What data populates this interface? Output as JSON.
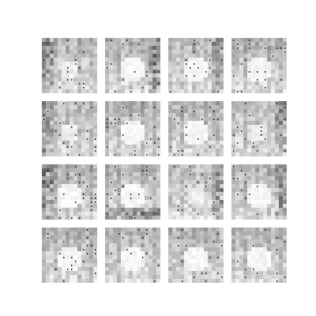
{
  "grid": {
    "rows": 4,
    "cols": 4,
    "tiles": [
      {
        "row": 0,
        "col": 0,
        "motif": "noise",
        "contrast": 0.55,
        "stripes": "left"
      },
      {
        "row": 0,
        "col": 1,
        "motif": "blob",
        "contrast": 0.6,
        "stripes": "right"
      },
      {
        "row": 0,
        "col": 2,
        "motif": "blob",
        "contrast": 0.55,
        "stripes": "right"
      },
      {
        "row": 0,
        "col": 3,
        "motif": "blob",
        "contrast": 0.65,
        "stripes": "none"
      },
      {
        "row": 1,
        "col": 0,
        "motif": "noise",
        "contrast": 0.5,
        "stripes": "left"
      },
      {
        "row": 1,
        "col": 1,
        "motif": "blob",
        "contrast": 0.7,
        "stripes": "none"
      },
      {
        "row": 1,
        "col": 2,
        "motif": "blob",
        "contrast": 0.65,
        "stripes": "none"
      },
      {
        "row": 1,
        "col": 3,
        "motif": "noise",
        "contrast": 0.5,
        "stripes": "right"
      },
      {
        "row": 2,
        "col": 0,
        "motif": "blob",
        "contrast": 0.7,
        "stripes": "left"
      },
      {
        "row": 2,
        "col": 1,
        "motif": "blob",
        "contrast": 0.6,
        "stripes": "bottom"
      },
      {
        "row": 2,
        "col": 2,
        "motif": "noise",
        "contrast": 0.45,
        "stripes": "right"
      },
      {
        "row": 2,
        "col": 3,
        "motif": "blob",
        "contrast": 0.6,
        "stripes": "right"
      },
      {
        "row": 3,
        "col": 0,
        "motif": "blob",
        "contrast": 0.65,
        "stripes": "none"
      },
      {
        "row": 3,
        "col": 1,
        "motif": "blob",
        "contrast": 0.6,
        "stripes": "none"
      },
      {
        "row": 3,
        "col": 2,
        "motif": "blob",
        "contrast": 0.6,
        "stripes": "none"
      },
      {
        "row": 3,
        "col": 3,
        "motif": "blob",
        "contrast": 0.6,
        "stripes": "none"
      }
    ]
  },
  "colors": {
    "background": "#ffffff",
    "dark": "#222222",
    "mid": "#8a8a8a",
    "light": "#d8d8d8"
  }
}
